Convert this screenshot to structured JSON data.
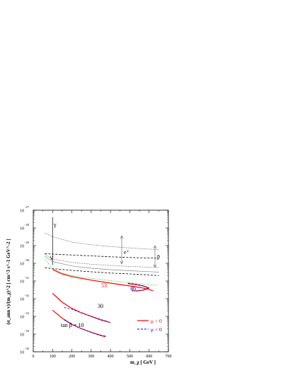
{
  "chart_data": {
    "type": "line",
    "ylabel": "(σ_ann v)/(m_χ)^2 [ cm^3 s^-1 GeV^-2 ]",
    "xlabel": "m_χ [ GeV ]",
    "xlim": [
      0,
      700
    ],
    "ylim_log10": [
      -35,
      -27
    ],
    "y_scale": "log",
    "x_ticks": [
      "0",
      "100",
      "200",
      "300",
      "400",
      "500",
      "600",
      "700"
    ],
    "y_ticks": [
      {
        "base": "10",
        "exp": "-27",
        "logv": -27
      },
      {
        "base": "10",
        "exp": "-28",
        "logv": -28
      },
      {
        "base": "10",
        "exp": "-29",
        "logv": -29
      },
      {
        "base": "10",
        "exp": "-30",
        "logv": -30
      },
      {
        "base": "10",
        "exp": "-31",
        "logv": -31
      },
      {
        "base": "10",
        "exp": "-32",
        "logv": -32
      },
      {
        "base": "10",
        "exp": "-33",
        "logv": -33
      },
      {
        "base": "10",
        "exp": "-34",
        "logv": -34
      },
      {
        "base": "10",
        "exp": "-35",
        "logv": -35
      }
    ],
    "grid": false,
    "legend": {
      "placement": "bottom-right",
      "entries": [
        {
          "label": "μ > 0",
          "color": "#ff0000",
          "style": "solid"
        },
        {
          "label": "μ < 0",
          "color": "#0000cc",
          "style": "dashed"
        }
      ]
    },
    "annotations": {
      "gamma": "γ",
      "eplus": "e⁺",
      "pbar": "p̄",
      "label_53": "53",
      "label_46": "46",
      "label_30": "30",
      "label_tanb": "tan β = 10"
    },
    "series": [
      {
        "key": "gamma_line",
        "color": "#000000",
        "style": "solid",
        "points": [
          [
            100,
            -27.4
          ],
          [
            100,
            -30.1
          ]
        ]
      },
      {
        "key": "gamma_dotted_upper",
        "color": "#444444",
        "style": "dotted",
        "points": [
          [
            60,
            -28.3
          ],
          [
            100,
            -28.5
          ],
          [
            200,
            -28.8
          ],
          [
            300,
            -28.95
          ],
          [
            400,
            -29.05
          ],
          [
            500,
            -29.13
          ],
          [
            600,
            -29.2
          ],
          [
            650,
            -29.23
          ]
        ]
      },
      {
        "key": "eplus_dashed_upper",
        "color": "#000000",
        "style": "dashed",
        "points": [
          [
            60,
            -29.45
          ],
          [
            100,
            -29.48
          ],
          [
            200,
            -29.53
          ],
          [
            300,
            -29.58
          ],
          [
            400,
            -29.63
          ],
          [
            500,
            -29.67
          ],
          [
            600,
            -29.7
          ],
          [
            650,
            -29.72
          ]
        ]
      },
      {
        "key": "eplus_dotted_lower",
        "color": "#444444",
        "style": "dotted",
        "points": [
          [
            60,
            -29.5
          ],
          [
            100,
            -29.75
          ],
          [
            200,
            -29.95
          ],
          [
            300,
            -30.05
          ],
          [
            400,
            -30.12
          ],
          [
            500,
            -30.18
          ],
          [
            600,
            -30.22
          ],
          [
            650,
            -30.24
          ]
        ]
      },
      {
        "key": "pbar_solid_gray",
        "color": "#888888",
        "style": "solid",
        "points": [
          [
            60,
            -29.6
          ],
          [
            100,
            -29.9
          ],
          [
            200,
            -30.15
          ],
          [
            300,
            -30.28
          ],
          [
            400,
            -30.36
          ],
          [
            500,
            -30.42
          ],
          [
            600,
            -30.47
          ],
          [
            650,
            -30.5
          ]
        ]
      },
      {
        "key": "pbar_dashed_lower",
        "color": "#000000",
        "style": "dashed",
        "points": [
          [
            60,
            -30.25
          ],
          [
            100,
            -30.3
          ],
          [
            200,
            -30.4
          ],
          [
            300,
            -30.48
          ],
          [
            400,
            -30.55
          ],
          [
            500,
            -30.6
          ],
          [
            600,
            -30.66
          ],
          [
            650,
            -30.7
          ]
        ]
      },
      {
        "key": "green_dotted",
        "color": "#00cc00",
        "style": "dotted",
        "points": [
          [
            60,
            -29.75
          ],
          [
            100,
            -30.3
          ],
          [
            150,
            -30.55
          ],
          [
            200,
            -30.7
          ],
          [
            300,
            -30.85
          ],
          [
            400,
            -30.98
          ],
          [
            500,
            -31.1
          ],
          [
            600,
            -31.2
          ],
          [
            650,
            -31.25
          ]
        ]
      },
      {
        "key": "red_53",
        "color": "#ff0000",
        "style": "solid",
        "points": [
          [
            100,
            -30.35
          ],
          [
            150,
            -30.6
          ],
          [
            200,
            -30.75
          ],
          [
            300,
            -30.95
          ],
          [
            400,
            -31.12
          ],
          [
            500,
            -31.28
          ],
          [
            560,
            -31.38
          ],
          [
            590,
            -31.45
          ],
          [
            620,
            -31.55
          ]
        ]
      },
      {
        "key": "red_46_upper",
        "color": "#ff0000",
        "style": "solid",
        "points": [
          [
            490,
            -31.15
          ],
          [
            530,
            -31.2
          ],
          [
            570,
            -31.28
          ],
          [
            600,
            -31.4
          ]
        ]
      },
      {
        "key": "red_46_lower",
        "color": "#ff0000",
        "style": "solid",
        "points": [
          [
            510,
            -31.55
          ],
          [
            540,
            -31.55
          ],
          [
            570,
            -31.52
          ],
          [
            600,
            -31.4
          ]
        ]
      },
      {
        "key": "blue_46_upper",
        "color": "#0000cc",
        "style": "dashed",
        "points": [
          [
            490,
            -31.12
          ],
          [
            530,
            -31.18
          ],
          [
            570,
            -31.27
          ],
          [
            600,
            -31.38
          ]
        ]
      },
      {
        "key": "blue_46_lower",
        "color": "#0000cc",
        "style": "dashed",
        "points": [
          [
            510,
            -31.55
          ],
          [
            540,
            -31.57
          ],
          [
            570,
            -31.52
          ],
          [
            600,
            -31.38
          ]
        ]
      },
      {
        "key": "red_30",
        "color": "#ff0000",
        "style": "solid",
        "points": [
          [
            100,
            -31.7
          ],
          [
            150,
            -32.2
          ],
          [
            200,
            -32.55
          ],
          [
            250,
            -32.8
          ],
          [
            300,
            -33.0
          ],
          [
            350,
            -33.2
          ],
          [
            400,
            -33.35
          ]
        ]
      },
      {
        "key": "blue_30",
        "color": "#0000cc",
        "style": "dashed",
        "points": [
          [
            160,
            -32.5
          ],
          [
            200,
            -32.6
          ],
          [
            250,
            -32.8
          ],
          [
            300,
            -33.0
          ],
          [
            350,
            -33.18
          ],
          [
            390,
            -33.3
          ]
        ]
      },
      {
        "key": "red_10",
        "color": "#ff0000",
        "style": "solid",
        "points": [
          [
            100,
            -32.65
          ],
          [
            150,
            -33.1
          ],
          [
            200,
            -33.45
          ],
          [
            250,
            -33.7
          ],
          [
            300,
            -33.9
          ],
          [
            350,
            -34.08
          ],
          [
            375,
            -34.15
          ]
        ]
      },
      {
        "key": "blue_10",
        "color": "#0000cc",
        "style": "dashed",
        "points": [
          [
            160,
            -33.2
          ],
          [
            200,
            -33.45
          ],
          [
            250,
            -33.7
          ],
          [
            300,
            -33.9
          ],
          [
            350,
            -34.06
          ],
          [
            375,
            -34.12
          ]
        ]
      }
    ]
  }
}
